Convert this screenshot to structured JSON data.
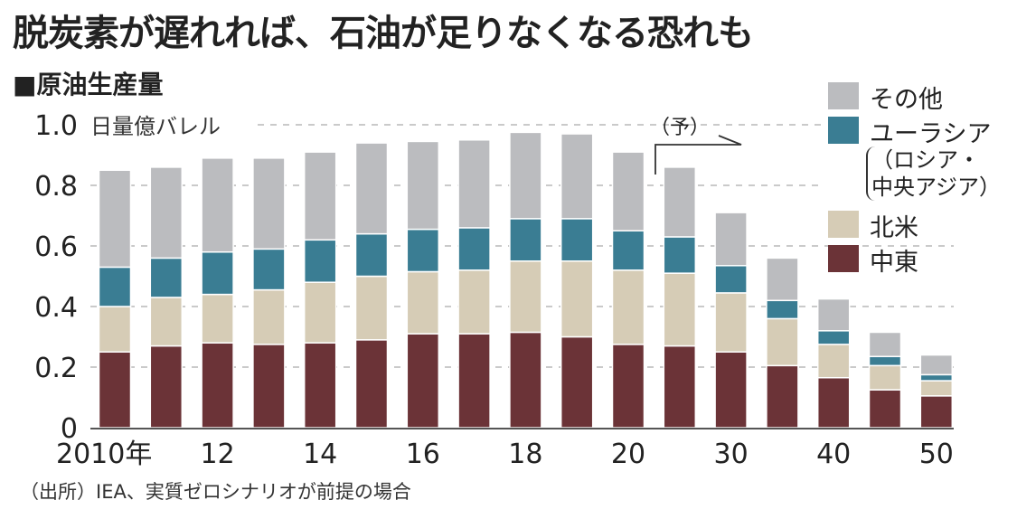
{
  "title": "脱炭素が遅れれば、石油が足りなくなる恐れも",
  "subtitle": "■原油生産量",
  "source": "（出所）IEA、実質ゼロシナリオが前提の場合",
  "colors": {
    "middle_east": "#6b3337",
    "north_america": "#d6ccb6",
    "eurasia": "#3a7d93",
    "other": "#bbbcbf"
  },
  "chart_data": {
    "type": "bar",
    "stacked": true,
    "title": "原油生産量",
    "ylabel": "日量億バレル",
    "ylim": [
      0,
      1.0
    ],
    "yticks": [
      "0",
      "0.2",
      "0.4",
      "0.6",
      "0.8",
      "1.0"
    ],
    "grid": true,
    "legend_position": "right",
    "forecast_label": "（予）",
    "x": [
      2010,
      2011,
      2012,
      2013,
      2014,
      2015,
      2016,
      2017,
      2018,
      2019,
      2020,
      2025,
      2030,
      2035,
      2040,
      2045,
      2050
    ],
    "xtick_labels": [
      {
        "index": 0,
        "label": "2010年"
      },
      {
        "index": 2,
        "label": "12"
      },
      {
        "index": 4,
        "label": "14"
      },
      {
        "index": 6,
        "label": "16"
      },
      {
        "index": 8,
        "label": "18"
      },
      {
        "index": 10,
        "label": "20"
      },
      {
        "index": 12,
        "label": "30"
      },
      {
        "index": 14,
        "label": "40"
      },
      {
        "index": 16,
        "label": "50"
      }
    ],
    "series": [
      {
        "key": "middle_east",
        "name": "中東",
        "values": [
          0.25,
          0.27,
          0.28,
          0.275,
          0.28,
          0.29,
          0.31,
          0.31,
          0.315,
          0.3,
          0.275,
          0.27,
          0.25,
          0.205,
          0.165,
          0.125,
          0.105
        ]
      },
      {
        "key": "north_america",
        "name": "北米",
        "values": [
          0.15,
          0.16,
          0.16,
          0.18,
          0.2,
          0.21,
          0.205,
          0.21,
          0.235,
          0.25,
          0.245,
          0.24,
          0.195,
          0.155,
          0.11,
          0.08,
          0.05
        ]
      },
      {
        "key": "eurasia",
        "name": "ユーラシア",
        "note": [
          "（ロシア・",
          "中央アジア）"
        ],
        "values": [
          0.13,
          0.13,
          0.14,
          0.135,
          0.14,
          0.14,
          0.14,
          0.14,
          0.14,
          0.14,
          0.13,
          0.12,
          0.09,
          0.06,
          0.045,
          0.03,
          0.02
        ]
      },
      {
        "key": "other",
        "name": "その他",
        "values": [
          0.32,
          0.3,
          0.31,
          0.3,
          0.29,
          0.3,
          0.29,
          0.29,
          0.285,
          0.28,
          0.26,
          0.23,
          0.175,
          0.14,
          0.105,
          0.08,
          0.065
        ]
      }
    ]
  }
}
